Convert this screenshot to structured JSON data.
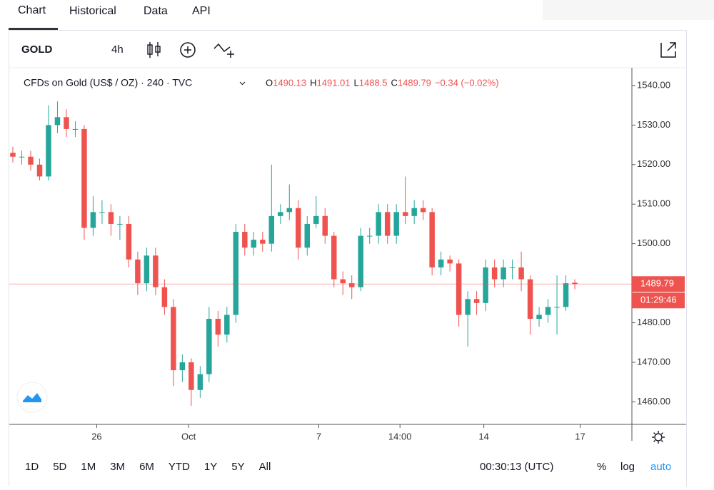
{
  "tabs": [
    "Chart",
    "Historical",
    "Data",
    "API"
  ],
  "toolbar": {
    "symbol": "GOLD",
    "interval": "4h"
  },
  "range_buttons": [
    "1D",
    "5D",
    "1M",
    "3M",
    "6M",
    "YTD",
    "1Y",
    "5Y",
    "All"
  ],
  "clock": "00:30:13 (UTC)",
  "scale_options": [
    "%",
    "log",
    "auto"
  ],
  "chart_data": {
    "type": "candlestick",
    "legend_title": "CFDs on Gold (US$ / OZ) · 240 · TVC",
    "ohlc_letters": [
      "O",
      "H",
      "L",
      "C"
    ],
    "change": "−0.34 (−0.02%)",
    "countdown": "01:29:46",
    "up_color": "#26a69a",
    "down_color": "#ef5350",
    "open": [
      1523,
      1522,
      1522,
      1520,
      1517,
      1530,
      1532,
      1529,
      1529,
      1504,
      1508,
      1508,
      1505,
      1505,
      1496,
      1490,
      1497,
      1489,
      1484,
      1468,
      1470,
      1463,
      1467,
      1481,
      1477,
      1482,
      1503,
      1499,
      1501,
      1500,
      1507,
      1508,
      1509,
      1499,
      1505,
      1507,
      1502,
      1491,
      1490,
      1489,
      1502,
      1502,
      1508,
      1502,
      1508,
      1507,
      1509,
      1508,
      1494,
      1496,
      1495,
      1482,
      1486,
      1485,
      1494,
      1491,
      1494,
      1494,
      1491,
      1481,
      1482,
      1484,
      1484,
      1490.13
    ],
    "high": [
      1524.5,
      1523.5,
      1523.5,
      1521.5,
      1535,
      1536,
      1534,
      1531,
      1530,
      1512,
      1511,
      1510,
      1507,
      1507,
      1498,
      1499,
      1499,
      1491,
      1486,
      1472,
      1471,
      1469,
      1484,
      1483,
      1484,
      1505,
      1505,
      1503,
      1503,
      1520,
      1510,
      1515,
      1511,
      1507,
      1512,
      1509,
      1503,
      1493,
      1492,
      1504,
      1504,
      1510,
      1510,
      1510,
      1517,
      1511,
      1511,
      1509,
      1498,
      1497,
      1496,
      1488,
      1488,
      1496,
      1496,
      1496,
      1496,
      1498,
      1492,
      1484,
      1486,
      1492,
      1492,
      1491.01
    ],
    "low": [
      1520.5,
      1520,
      1518.5,
      1516,
      1516,
      1528,
      1527,
      1527,
      1501,
      1502,
      1505,
      1502,
      1501,
      1494,
      1487,
      1488,
      1487,
      1482,
      1464,
      1465,
      1459,
      1461,
      1465,
      1474,
      1475,
      1480,
      1497,
      1497,
      1498,
      1498,
      1505,
      1506,
      1496,
      1497,
      1504,
      1500,
      1489,
      1487,
      1486,
      1488,
      1500,
      1500,
      1500,
      1500,
      1505,
      1505,
      1506,
      1492,
      1492,
      1493,
      1479,
      1474,
      1482,
      1483,
      1489,
      1489,
      1491,
      1488,
      1477,
      1479,
      1480,
      1477,
      1483,
      1488.5
    ],
    "close": [
      1522,
      1522,
      1520,
      1517,
      1530,
      1532,
      1529,
      1529,
      1504,
      1508,
      1508,
      1505,
      1505,
      1496,
      1490,
      1497,
      1489,
      1484,
      1468,
      1470,
      1463,
      1467,
      1481,
      1477,
      1482,
      1503,
      1499,
      1501,
      1500,
      1507,
      1508,
      1509,
      1499,
      1505,
      1507,
      1502,
      1491,
      1490,
      1489,
      1502,
      1502,
      1508,
      1502,
      1508,
      1507,
      1509,
      1508,
      1494,
      1496,
      1495,
      1482,
      1486,
      1485,
      1494,
      1491,
      1494,
      1494,
      1491,
      1481,
      1482,
      1484,
      1484,
      1490,
      1489.79
    ],
    "xlim": [
      -0.4,
      69.4
    ],
    "xticks": [
      {
        "value": 9.4,
        "label": "26"
      },
      {
        "value": 19.7,
        "label": "Oct"
      },
      {
        "value": 34.3,
        "label": "7"
      },
      {
        "value": 43.4,
        "label": "14:00"
      },
      {
        "value": 52.8,
        "label": "14"
      },
      {
        "value": 63.6,
        "label": "17"
      }
    ],
    "ylim": [
      1454.3,
      1544.5
    ],
    "yticks": [
      {
        "value": 1460,
        "label": "1460.00"
      },
      {
        "value": 1470,
        "label": "1470.00"
      },
      {
        "value": 1480,
        "label": "1480.00"
      },
      {
        "value": 1490,
        "label": "1490.00"
      },
      {
        "value": 1500,
        "label": "1500.00"
      },
      {
        "value": 1510,
        "label": "1510.00"
      },
      {
        "value": 1520,
        "label": "1520.00"
      },
      {
        "value": 1530,
        "label": "1530.00"
      },
      {
        "value": 1540,
        "label": "1540.00"
      }
    ]
  }
}
